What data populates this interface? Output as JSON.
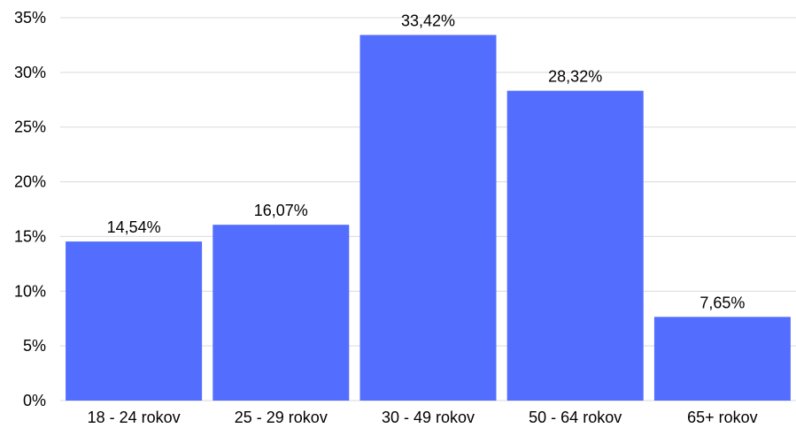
{
  "chart_data": {
    "type": "bar",
    "title": "",
    "xlabel": "",
    "ylabel": "",
    "categories": [
      "18 - 24 rokov",
      "25 - 29 rokov",
      "30 - 49 rokov",
      "50 - 64 rokov",
      "65+ rokov"
    ],
    "values": [
      14.54,
      16.07,
      33.42,
      28.32,
      7.65
    ],
    "data_labels": [
      "14,54%",
      "16,07%",
      "33,42%",
      "28,32%",
      "7,65%"
    ],
    "ylim": [
      0,
      35
    ],
    "yticks": [
      0,
      5,
      10,
      15,
      20,
      25,
      30,
      35
    ],
    "ytick_labels": [
      "0%",
      "5%",
      "10%",
      "15%",
      "20%",
      "25%",
      "30%",
      "35%"
    ],
    "grid": true,
    "legend": "none",
    "bar_color": "#536dfe",
    "grid_color": "#d9d9d9"
  }
}
